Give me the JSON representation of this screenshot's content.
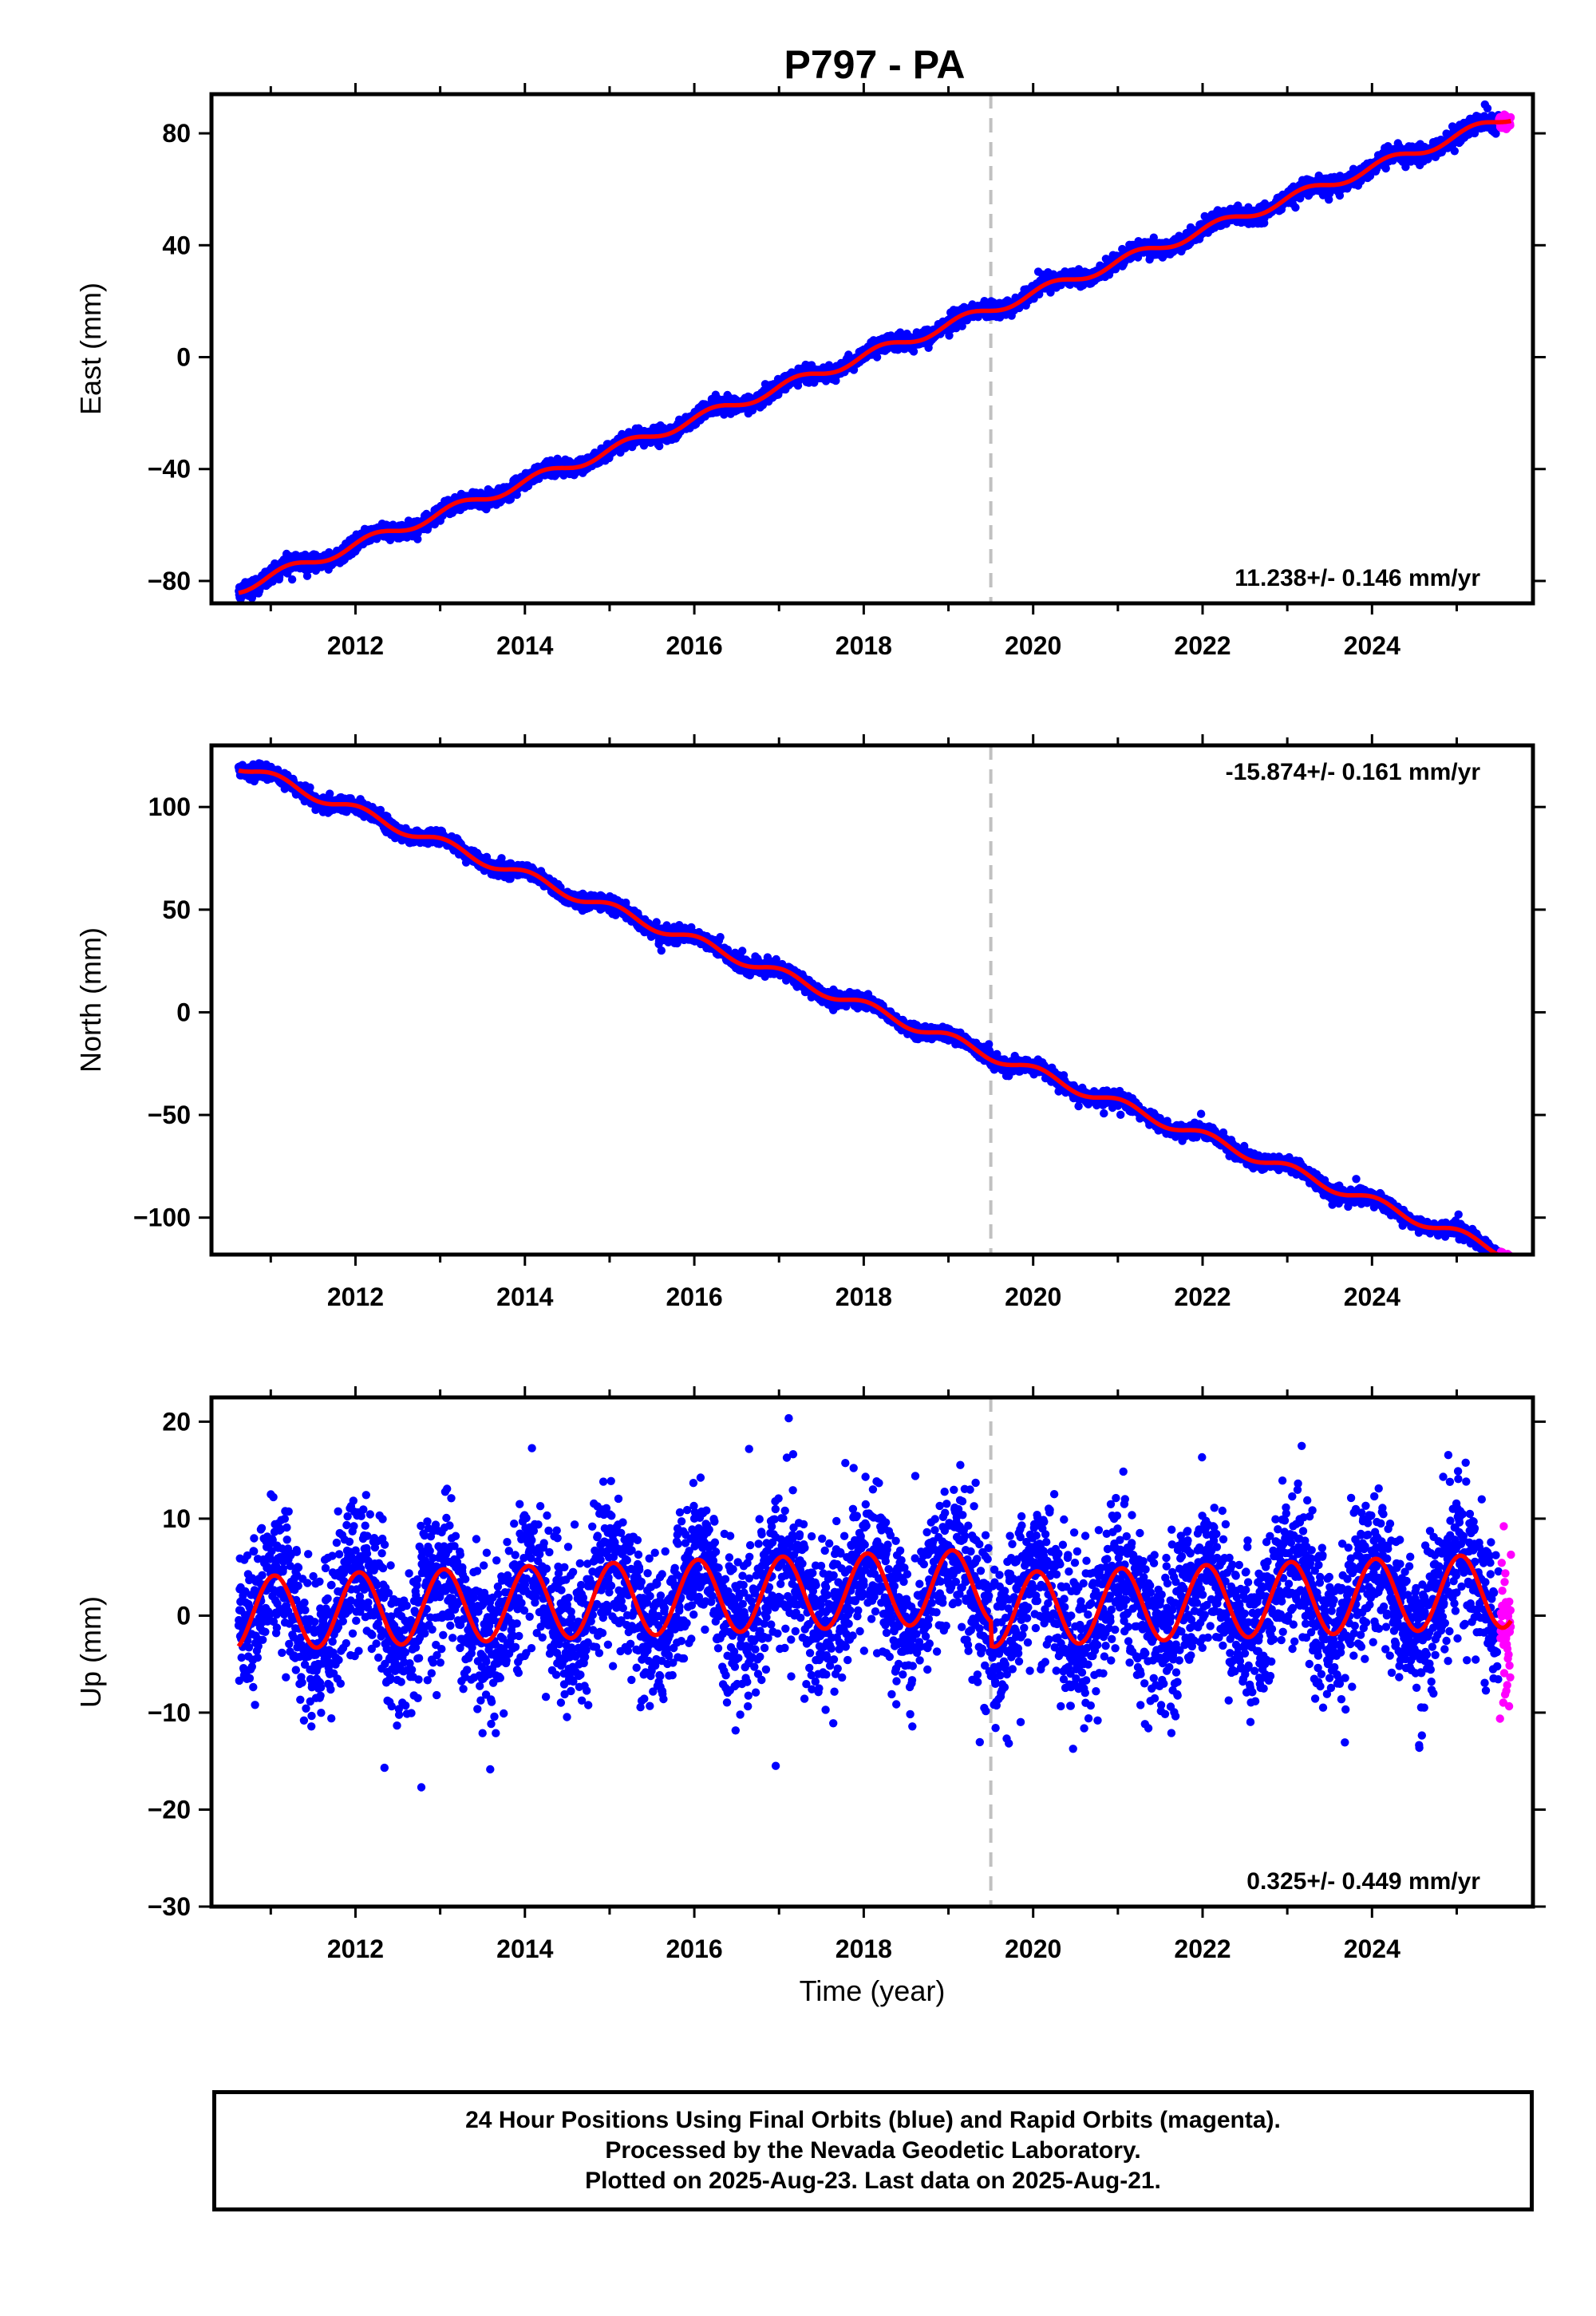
{
  "page": {
    "title": "P797 - PA",
    "caption_lines": [
      "24 Hour Positions Using Final Orbits (blue) and Rapid Orbits (magenta).",
      "Processed by the Nevada Geodetic Laboratory.",
      "Plotted on 2025-Aug-23. Last data on 2025-Aug-21."
    ]
  },
  "colors": {
    "final_orbit_points": "#0000ff",
    "rapid_orbit_points": "#ff00ff",
    "model_fit": "#ff0000",
    "equipment_change_line": "#c0c0c0",
    "frame": "#000000"
  },
  "chart_data": [
    {
      "type": "scatter",
      "ylabel": "East (mm)",
      "xlabel": "",
      "xlim": [
        2010.3,
        2025.9
      ],
      "ylim": [
        -88,
        94
      ],
      "x_ticks": [
        2012,
        2014,
        2016,
        2018,
        2020,
        2022,
        2024
      ],
      "y_ticks": [
        -80,
        -40,
        0,
        40,
        80
      ],
      "y_tick_labels": [
        "−80",
        "−40",
        "0",
        "40",
        "80"
      ],
      "rate_annotation": "11.238+/- 0.146 mm/yr",
      "rate_position": "bottom-right",
      "equipment_change_year": 2019.5,
      "data_span": [
        2010.62,
        2025.64
      ],
      "rapid_start": 2025.5,
      "model": {
        "y_at_start": -82.7,
        "slope_mm_per_yr": 11.238,
        "annual_amplitude": 1.8,
        "annual_phase": 0.3,
        "break_offset": 0
      },
      "scatter_sigma": 1.3,
      "series": [
        {
          "name": "Final Orbits",
          "kind": "points",
          "color": "#0000ff"
        },
        {
          "name": "Rapid Orbits",
          "kind": "points",
          "color": "#ff00ff"
        },
        {
          "kind": "line",
          "color": "#ff0000"
        }
      ]
    },
    {
      "type": "scatter",
      "ylabel": "North (mm)",
      "xlabel": "",
      "xlim": [
        2010.3,
        2025.9
      ],
      "ylim": [
        -118,
        130
      ],
      "x_ticks": [
        2012,
        2014,
        2016,
        2018,
        2020,
        2022,
        2024
      ],
      "y_ticks": [
        -100,
        -50,
        0,
        50,
        100
      ],
      "y_tick_labels": [
        "−100",
        "−50",
        "0",
        "50",
        "100"
      ],
      "rate_annotation": "-15.874+/- 0.161 mm/yr",
      "rate_position": "top-right",
      "equipment_change_year": 2019.5,
      "data_span": [
        2010.62,
        2025.64
      ],
      "rapid_start": 2025.5,
      "model": {
        "y_at_start": 120.2,
        "slope_mm_per_yr": -15.874,
        "annual_amplitude": 2.6,
        "annual_phase": 1.2,
        "break_offset": 0
      },
      "scatter_sigma": 1.6,
      "series": [
        {
          "name": "Final Orbits",
          "kind": "points",
          "color": "#0000ff"
        },
        {
          "name": "Rapid Orbits",
          "kind": "points",
          "color": "#ff00ff"
        },
        {
          "kind": "line",
          "color": "#ff0000"
        }
      ]
    },
    {
      "type": "scatter",
      "ylabel": "Up (mm)",
      "xlabel": "Time (year)",
      "xlim": [
        2010.3,
        2025.9
      ],
      "ylim": [
        -30,
        22.5
      ],
      "x_ticks": [
        2012,
        2014,
        2016,
        2018,
        2020,
        2022,
        2024
      ],
      "y_ticks": [
        -30,
        -20,
        -10,
        0,
        10,
        20
      ],
      "y_tick_labels": [
        "−30",
        "−20",
        "−10",
        "0",
        "10",
        "20"
      ],
      "rate_annotation": "0.325+/- 0.449 mm/yr",
      "rate_position": "bottom-right",
      "equipment_change_year": 2019.5,
      "data_span": [
        2010.62,
        2025.64
      ],
      "rapid_start": 2025.5,
      "model": {
        "y_at_start": 0.2,
        "slope_mm_per_yr": 0.325,
        "annual_amplitude": 3.8,
        "annual_phase": 1.3,
        "break_offset": -2.5
      },
      "scatter_sigma": 3.8,
      "series": [
        {
          "name": "Final Orbits",
          "kind": "points",
          "color": "#0000ff"
        },
        {
          "name": "Rapid Orbits",
          "kind": "points",
          "color": "#ff00ff"
        },
        {
          "kind": "line",
          "color": "#ff0000"
        }
      ]
    }
  ]
}
